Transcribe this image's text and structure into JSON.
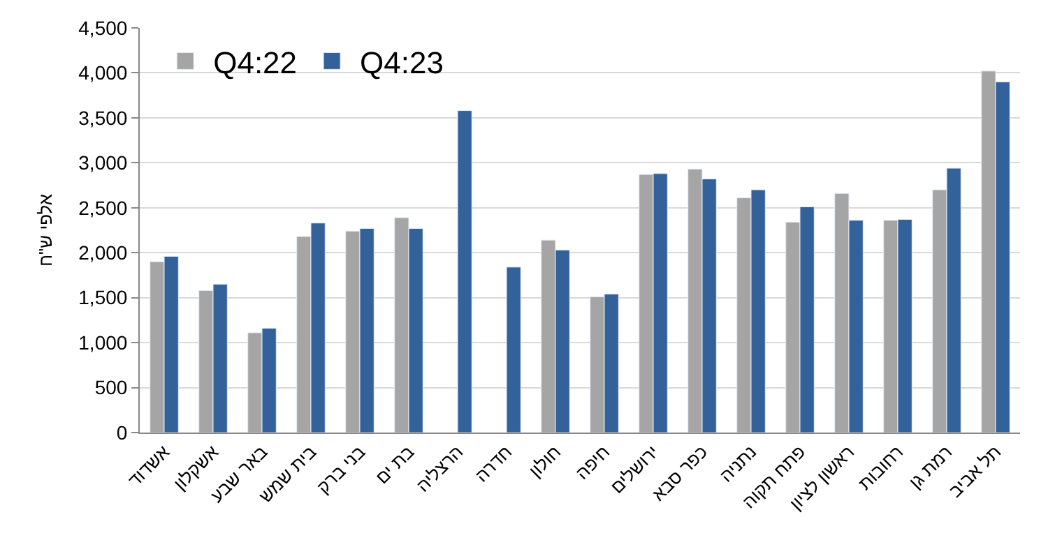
{
  "chart_data": {
    "type": "bar",
    "ylabel": "אלפי ש\"ח",
    "categories": [
      "אשדוד",
      "אשקלון",
      "באר שבע",
      "בית שמש",
      "בני ברק",
      "בת ים",
      "הרצליה",
      "חדרה",
      "חולון",
      "חיפה",
      "ירושלים",
      "כפר סבא",
      "נתניה",
      "פתח תקוה",
      "ראשון לציון",
      "רחובות",
      "רמת גן",
      "תל אביב"
    ],
    "series": [
      {
        "name": "Q4:22",
        "color": "#a5a5a5",
        "values": [
          1900,
          1580,
          1110,
          2180,
          2240,
          2390,
          null,
          null,
          2140,
          1510,
          2870,
          2930,
          2610,
          2340,
          2660,
          2360,
          2700,
          4020
        ]
      },
      {
        "name": "Q4:23",
        "color": "#336199",
        "values": [
          1960,
          1650,
          1160,
          2330,
          2270,
          2270,
          3580,
          1840,
          2030,
          1540,
          2880,
          2820,
          2700,
          2510,
          2360,
          2370,
          2940,
          3900
        ]
      }
    ],
    "ylim": [
      0,
      4500
    ],
    "yticks": [
      {
        "value": 0,
        "label": "0"
      },
      {
        "value": 500,
        "label": "500"
      },
      {
        "value": 1000,
        "label": "1,000"
      },
      {
        "value": 1500,
        "label": "1,500"
      },
      {
        "value": 2000,
        "label": "2,000"
      },
      {
        "value": 2500,
        "label": "2,500"
      },
      {
        "value": 3000,
        "label": "3,000"
      },
      {
        "value": 3500,
        "label": "3,500"
      },
      {
        "value": 4000,
        "label": "4,000"
      },
      {
        "value": 4500,
        "label": "4,500"
      }
    ],
    "grid": "y",
    "legend": "top left"
  }
}
